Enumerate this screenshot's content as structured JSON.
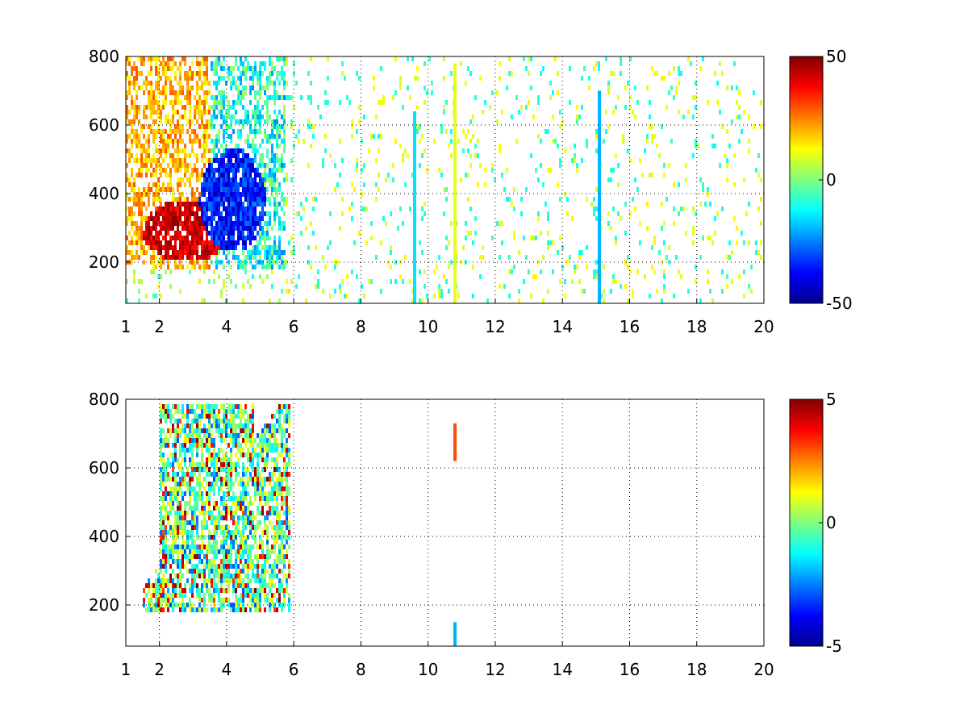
{
  "chart_data": [
    {
      "type": "heatmap",
      "title": "",
      "xlabel": "",
      "ylabel": "",
      "xlim": [
        1,
        20
      ],
      "ylim": [
        80,
        800
      ],
      "xticks": [
        1,
        2,
        4,
        6,
        8,
        10,
        12,
        14,
        16,
        18,
        20
      ],
      "yticks": [
        200,
        400,
        600,
        800
      ],
      "grid": true,
      "colormap": "jet",
      "colorbar": {
        "min": -50,
        "max": 50,
        "ticks": [
          -50,
          0,
          50
        ]
      },
      "features": [
        {
          "desc": "positive band",
          "x": [
            1.6,
            4.2
          ],
          "y": [
            220,
            420
          ],
          "value": 40
        },
        {
          "desc": "negative band",
          "x": [
            3.2,
            5.6
          ],
          "y": [
            230,
            560
          ],
          "value": -45
        },
        {
          "desc": "streak",
          "x": [
            9.6,
            9.6
          ],
          "y": [
            80,
            640
          ],
          "value": -15
        },
        {
          "desc": "streak",
          "x": [
            10.8,
            10.8
          ],
          "y": [
            80,
            780
          ],
          "value": 10
        },
        {
          "desc": "streak",
          "x": [
            15.1,
            15.1
          ],
          "y": [
            80,
            700
          ],
          "value": -20
        }
      ]
    },
    {
      "type": "heatmap",
      "title": "",
      "xlabel": "",
      "ylabel": "",
      "xlim": [
        1,
        20
      ],
      "ylim": [
        80,
        800
      ],
      "xticks": [
        1,
        2,
        4,
        6,
        8,
        10,
        12,
        14,
        16,
        18,
        20
      ],
      "yticks": [
        200,
        400,
        600,
        800
      ],
      "grid": true,
      "colormap": "jet",
      "colorbar": {
        "min": -5,
        "max": 5,
        "ticks": [
          -5,
          0,
          5
        ]
      },
      "features": [
        {
          "desc": "main blob",
          "x": [
            1.5,
            5.8
          ],
          "y": [
            180,
            790
          ],
          "value": -1
        },
        {
          "desc": "segment",
          "x": [
            10.8,
            10.8
          ],
          "y": [
            620,
            730
          ],
          "value": 3
        },
        {
          "desc": "segment",
          "x": [
            10.8,
            10.8
          ],
          "y": [
            80,
            150
          ],
          "value": -2
        }
      ]
    }
  ]
}
